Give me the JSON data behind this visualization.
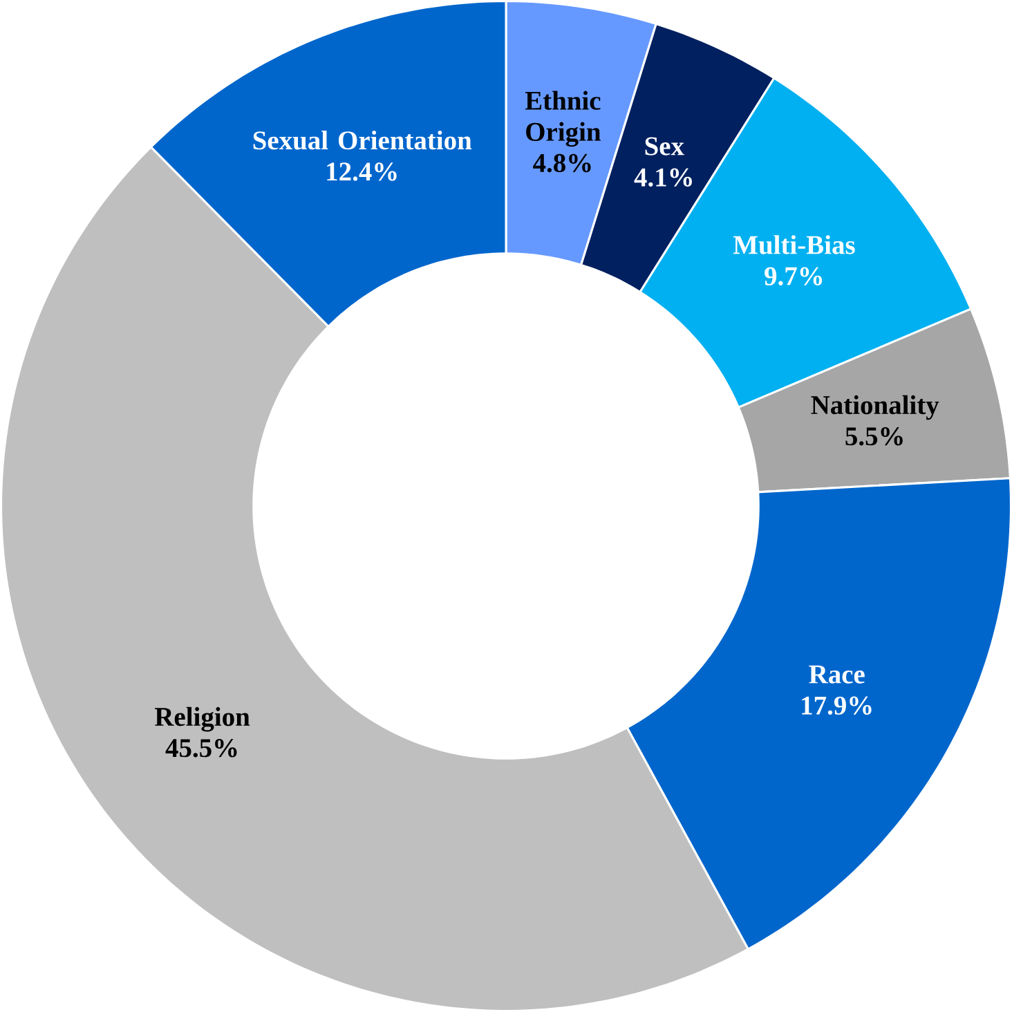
{
  "chart_data": {
    "type": "donut",
    "categories": [
      "Ethnic Origin",
      "Sex",
      "Multi-Bias",
      "Nationality",
      "Race",
      "Religion",
      "Sexual Orientation"
    ],
    "values": [
      4.8,
      4.1,
      9.7,
      5.5,
      17.9,
      45.5,
      12.4
    ],
    "value_labels": [
      "4.8%",
      "4.1%",
      "9.7%",
      "5.5%",
      "17.9%",
      "45.5%",
      "12.4%"
    ],
    "colors": [
      "#6699ff",
      "#002060",
      "#00b0f0",
      "#a6a6a6",
      "#0066cc",
      "#bfbfbf",
      "#0066cc"
    ]
  }
}
